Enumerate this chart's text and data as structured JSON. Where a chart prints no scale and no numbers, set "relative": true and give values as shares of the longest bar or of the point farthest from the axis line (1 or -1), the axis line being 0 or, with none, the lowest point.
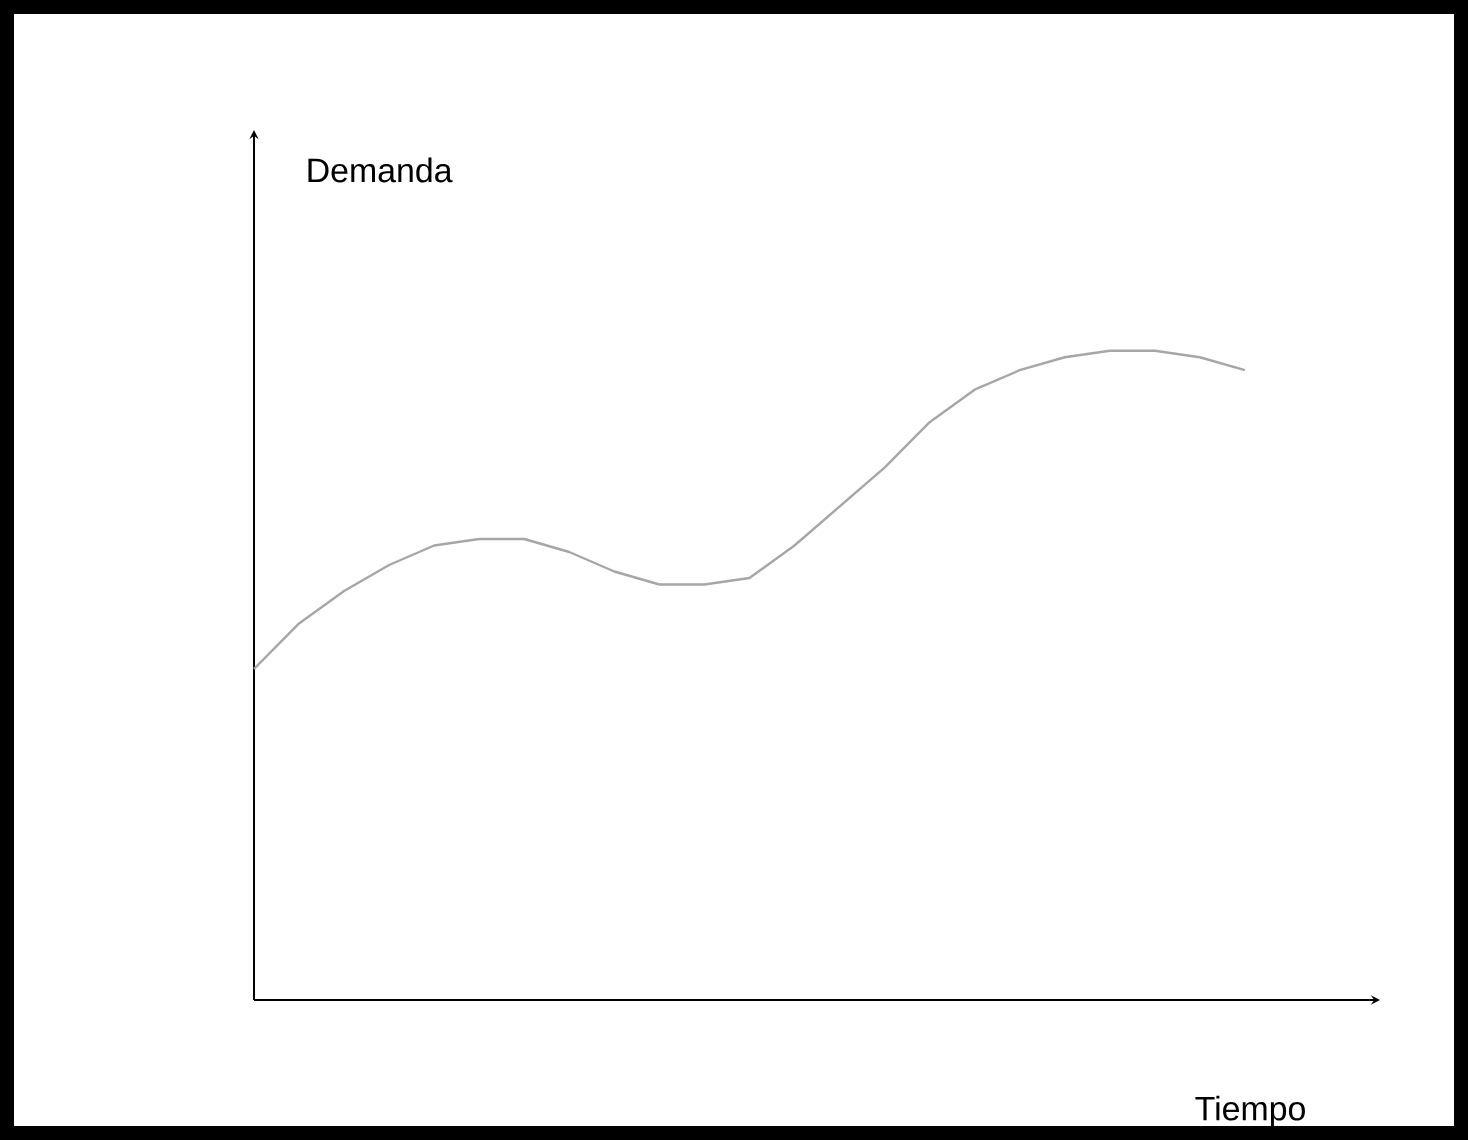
{
  "chart_data": {
    "type": "line",
    "relative": true,
    "xlabel": "Tiempo",
    "ylabel": "Demanda",
    "categories": [
      null,
      null,
      null,
      null,
      null,
      null,
      null,
      null,
      null,
      null,
      null,
      null,
      null,
      null,
      null,
      null,
      null,
      null,
      null,
      null,
      null,
      null,
      null
    ],
    "series": [
      {
        "color": "#a6a6a6",
        "values": [
          0.51,
          0.58,
          0.63,
          0.67,
          0.7,
          0.71,
          0.71,
          0.69,
          0.66,
          0.64,
          0.64,
          0.65,
          0.7,
          0.76,
          0.82,
          0.89,
          0.94,
          0.97,
          0.99,
          1.0,
          1.0,
          0.99,
          0.97
        ]
      }
    ],
    "marker": "none",
    "line_style": "solid"
  }
}
